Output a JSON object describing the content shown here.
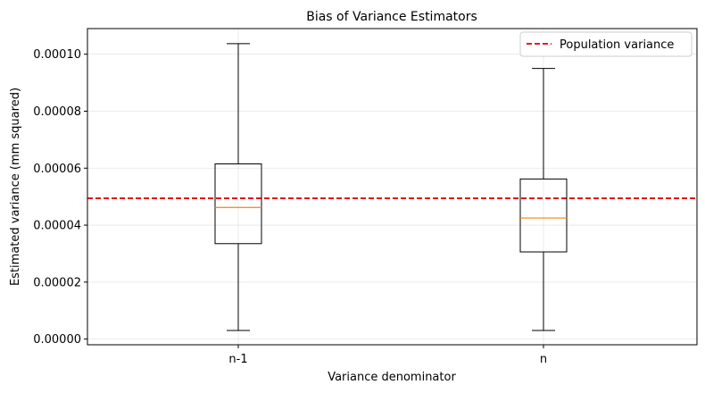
{
  "chart_data": {
    "type": "box",
    "title": "Bias of Variance Estimators",
    "xlabel": "Variance denominator",
    "ylabel": "Estimated variance (mm squared)",
    "ylim": [
      -2e-06,
      0.000109
    ],
    "yticks": [
      0.0,
      2e-05,
      4e-05,
      6e-05,
      8e-05,
      0.0001
    ],
    "ytick_labels": [
      "0.00000",
      "0.00002",
      "0.00004",
      "0.00006",
      "0.00008",
      "0.00010"
    ],
    "categories": [
      "n-1",
      "n"
    ],
    "boxes": [
      {
        "category": "n-1",
        "whisker_low": 3e-06,
        "q1": 3.35e-05,
        "median": 4.62e-05,
        "q3": 6.15e-05,
        "whisker_high": 0.0001037
      },
      {
        "category": "n",
        "whisker_low": 3e-06,
        "q1": 3.06e-05,
        "median": 4.25e-05,
        "q3": 5.62e-05,
        "whisker_high": 9.5e-05
      }
    ],
    "reference_line": {
      "label": "Population variance",
      "value": 4.94e-05,
      "color": "#dd0000",
      "style": "dashed"
    },
    "grid": true,
    "legend_position": "top-right",
    "colors": {
      "box": "#000000",
      "median": "#ff7f0e",
      "grid": "#e6e6e6"
    }
  }
}
